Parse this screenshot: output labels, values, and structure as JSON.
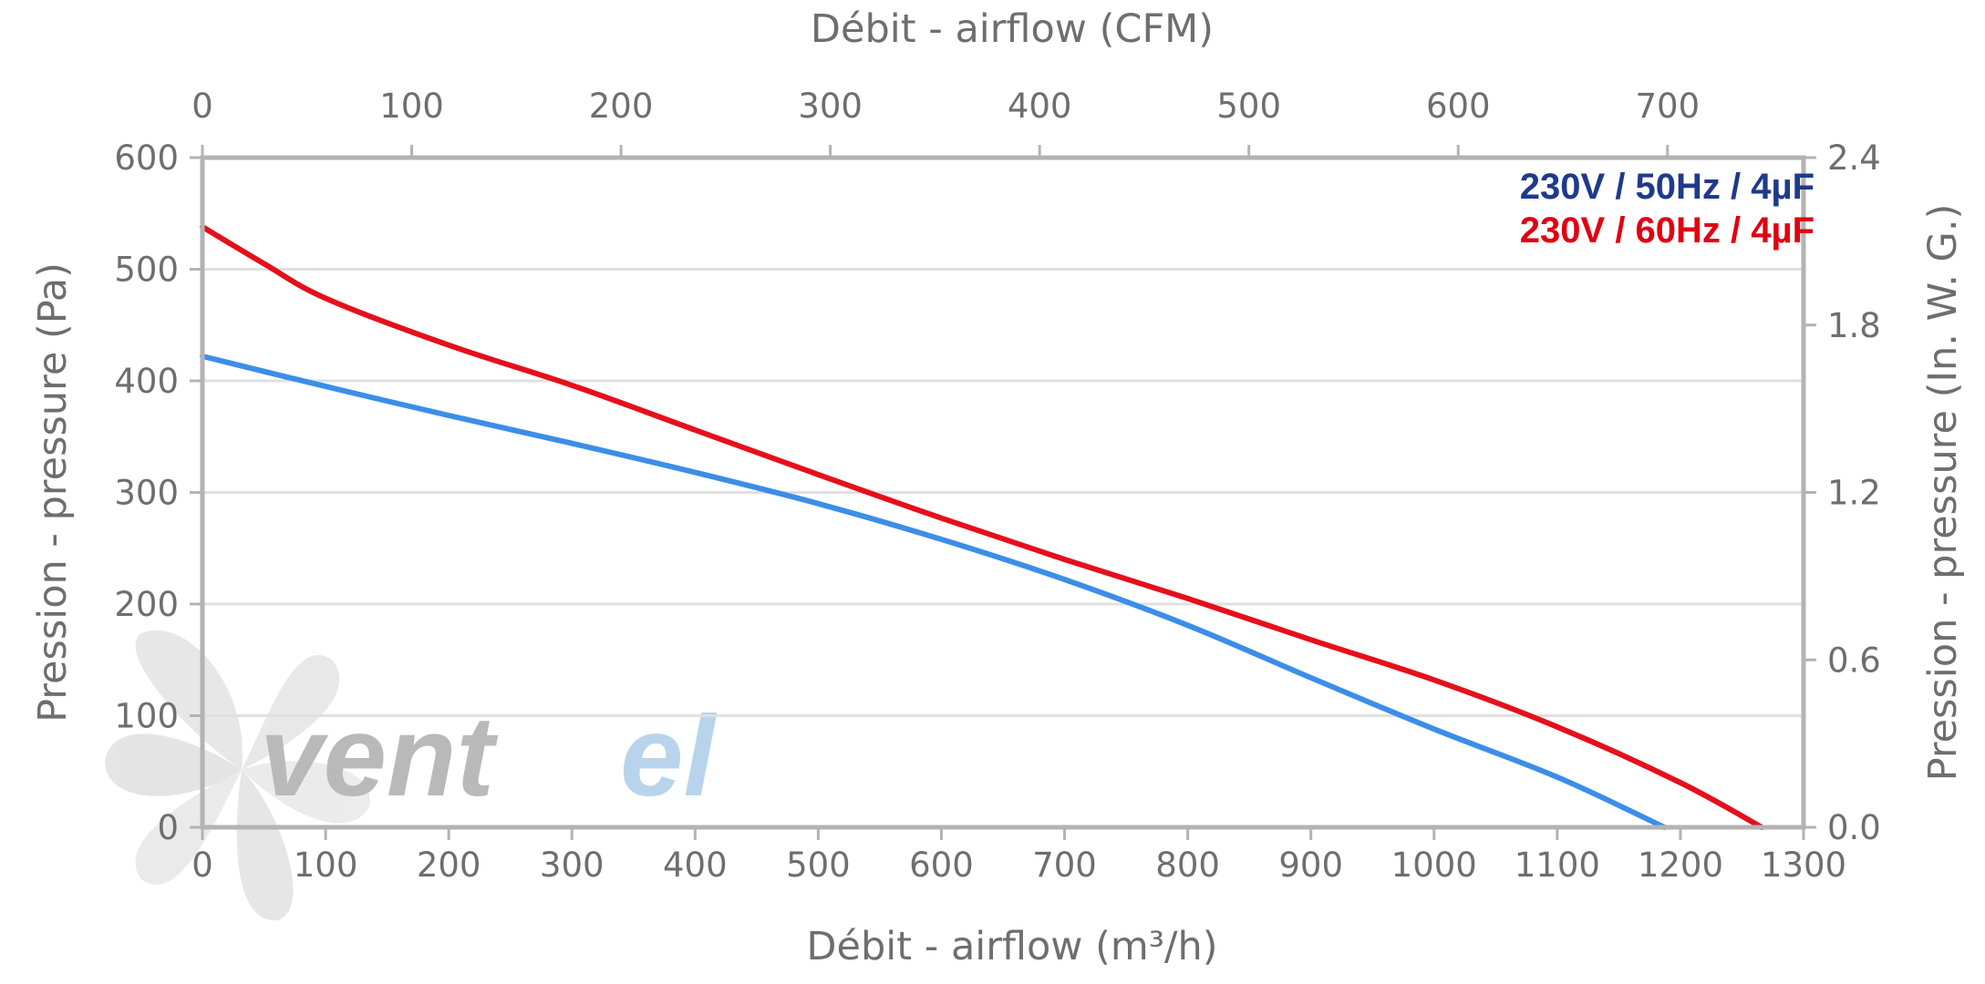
{
  "chart_data": {
    "type": "line",
    "title": "",
    "logo_text": "ventel",
    "colors": {
      "axis": "#b3b3b3",
      "grid": "#e0e0e0",
      "text": "#6e6e6e",
      "logo_gray": "#b9b9b9",
      "logo_blue": "#b8d4ec"
    },
    "x_axis_bottom": {
      "label": "Débit - airflow (m³/h)",
      "range": [
        0,
        1300
      ],
      "ticks": [
        0,
        100,
        200,
        300,
        400,
        500,
        600,
        700,
        800,
        900,
        1000,
        1100,
        1200,
        1300
      ]
    },
    "x_axis_top": {
      "label": "Débit - airflow (CFM)",
      "range": [
        0,
        765
      ],
      "ticks": [
        0,
        100,
        200,
        300,
        400,
        500,
        600,
        700
      ]
    },
    "y_axis_left": {
      "label": "Pression - pressure (Pa)",
      "range": [
        0,
        600
      ],
      "ticks": [
        0,
        100,
        200,
        300,
        400,
        500,
        600
      ]
    },
    "y_axis_right": {
      "label": "Pression - pressure (In. W. G.)",
      "range": [
        0,
        2.4
      ],
      "ticks": [
        "0.0",
        "0.6",
        "1.2",
        "1.8",
        "2.4"
      ]
    },
    "grid": true,
    "legend_position": "top-right",
    "series": [
      {
        "name": "230V / 50Hz / 4µF",
        "legend_color": "#1f3a8a",
        "line_color": "#3b8ee8",
        "points": [
          [
            0,
            422
          ],
          [
            100,
            395
          ],
          [
            200,
            369
          ],
          [
            300,
            344
          ],
          [
            400,
            318
          ],
          [
            500,
            290
          ],
          [
            600,
            258
          ],
          [
            700,
            222
          ],
          [
            800,
            181
          ],
          [
            900,
            134
          ],
          [
            1000,
            88
          ],
          [
            1100,
            45
          ],
          [
            1187,
            0
          ]
        ]
      },
      {
        "name": "230V / 60Hz / 4µF",
        "legend_color": "#e00012",
        "line_color": "#e60f1c",
        "points": [
          [
            0,
            538
          ],
          [
            50,
            505
          ],
          [
            100,
            474
          ],
          [
            200,
            432
          ],
          [
            300,
            396
          ],
          [
            400,
            356
          ],
          [
            500,
            316
          ],
          [
            600,
            277
          ],
          [
            700,
            240
          ],
          [
            800,
            205
          ],
          [
            900,
            168
          ],
          [
            1000,
            132
          ],
          [
            1100,
            90
          ],
          [
            1200,
            40
          ],
          [
            1266,
            0
          ]
        ]
      }
    ]
  }
}
